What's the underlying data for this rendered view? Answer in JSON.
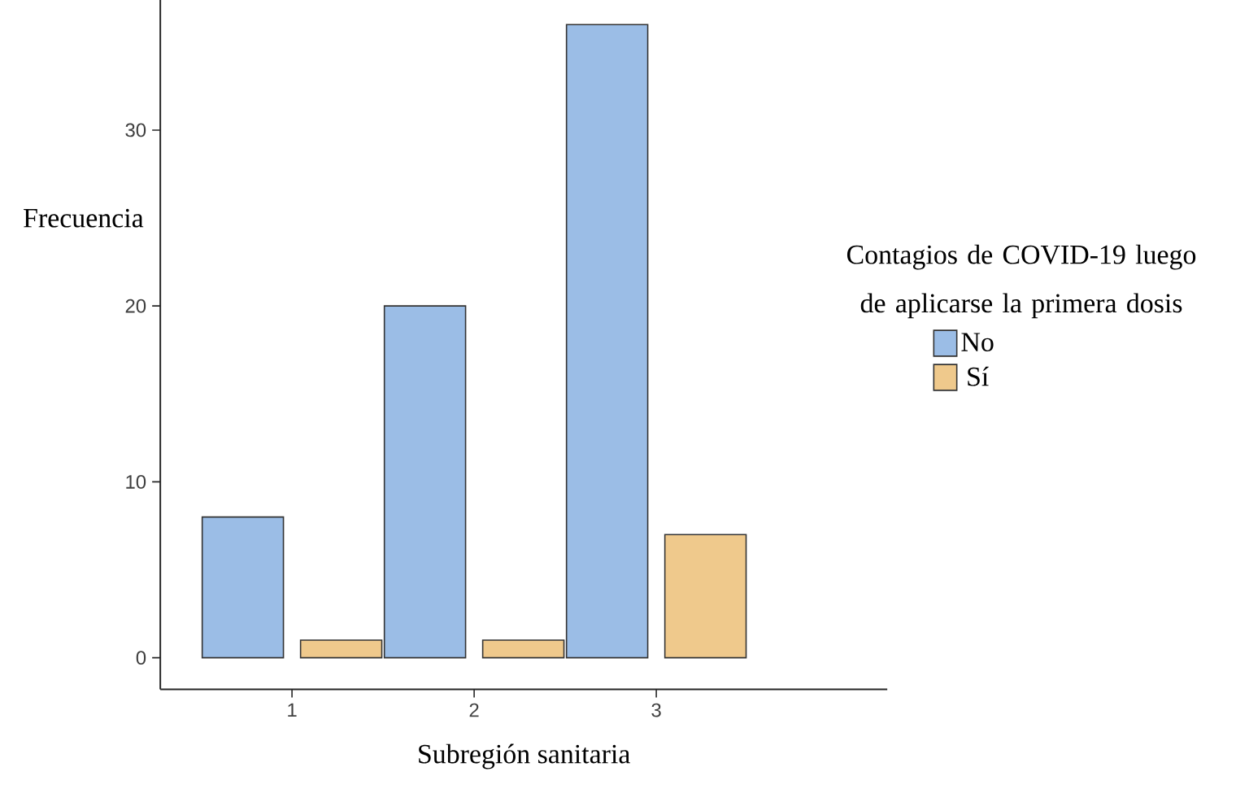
{
  "chart_data": {
    "type": "bar",
    "xlabel": "Subregión sanitaria",
    "ylabel": "Frecuencia",
    "legend_title": "Contagios de COVID-19 luego de aplicarse la primera dosis",
    "legend": "right",
    "categories": [
      "1",
      "2",
      "3"
    ],
    "series": [
      {
        "name": "No",
        "color": "#9bbde6",
        "values": [
          8,
          20,
          36
        ]
      },
      {
        "name": "Sí",
        "color": "#efc98c",
        "values": [
          1,
          1,
          7
        ]
      }
    ],
    "ylim": [
      -1.8,
      37.6
    ],
    "yticks": [
      0,
      10,
      20,
      30
    ]
  }
}
